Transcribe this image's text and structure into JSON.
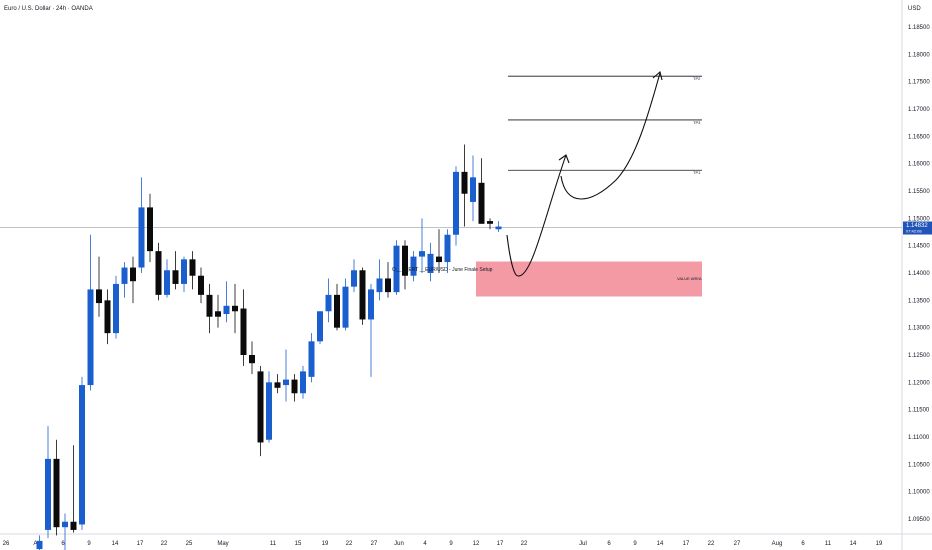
{
  "header": {
    "title": "Euro / U.S. Dollar · 24h · OANDA"
  },
  "y_axis": {
    "currency": "USD"
  },
  "price_tag": {
    "price": "1.14832",
    "countdown": "07:42:08"
  },
  "annotations": {
    "tp1": "TP1",
    "tp2": "TP2",
    "tp3": "TP3",
    "value_area": "VALUE AREA",
    "setup": "O__ __ERT __EUR/USD - June Finale Setup"
  },
  "chart_data": {
    "type": "candlestick",
    "title": "Euro / U.S. Dollar · 24h · OANDA",
    "xlabel": "",
    "ylabel": "USD",
    "ylim": [
      1.0915,
      1.1895
    ],
    "grid": false,
    "y_ticks": [
      "1.18500",
      "1.18000",
      "1.17500",
      "1.17000",
      "1.16500",
      "1.16000",
      "1.15500",
      "1.15000",
      "1.14500",
      "1.14000",
      "1.13500",
      "1.13000",
      "1.12500",
      "1.12000",
      "1.11500",
      "1.11000",
      "1.10500",
      "1.10000",
      "1.09500"
    ],
    "x_ticks": [
      "26",
      "Apr",
      "6",
      "9",
      "14",
      "17",
      "22",
      "25",
      "May",
      "11",
      "15",
      "19",
      "22",
      "27",
      "Jun",
      "4",
      "9",
      "12",
      "17",
      "22",
      "Jul",
      "6",
      "9",
      "14",
      "17",
      "22",
      "27",
      "Aug",
      "6",
      "11",
      "14",
      "19",
      "22",
      "2"
    ],
    "candles": [
      {
        "open": 1.0895,
        "high": 1.092,
        "low": 1.086,
        "close": 1.091
      },
      {
        "open": 1.093,
        "high": 1.112,
        "low": 1.0915,
        "close": 1.106
      },
      {
        "open": 1.106,
        "high": 1.1095,
        "low": 1.092,
        "close": 1.0935
      },
      {
        "open": 1.0935,
        "high": 1.096,
        "low": 1.088,
        "close": 1.0945
      },
      {
        "open": 1.0945,
        "high": 1.1085,
        "low": 1.0925,
        "close": 1.093
      },
      {
        "open": 1.094,
        "high": 1.121,
        "low": 1.093,
        "close": 1.1195
      },
      {
        "open": 1.1195,
        "high": 1.147,
        "low": 1.1185,
        "close": 1.137
      },
      {
        "open": 1.137,
        "high": 1.143,
        "low": 1.132,
        "close": 1.1345
      },
      {
        "open": 1.135,
        "high": 1.137,
        "low": 1.127,
        "close": 1.129
      },
      {
        "open": 1.129,
        "high": 1.1395,
        "low": 1.128,
        "close": 1.138
      },
      {
        "open": 1.138,
        "high": 1.142,
        "low": 1.1355,
        "close": 1.141
      },
      {
        "open": 1.141,
        "high": 1.143,
        "low": 1.1345,
        "close": 1.1385
      },
      {
        "open": 1.141,
        "high": 1.1575,
        "low": 1.14,
        "close": 1.152
      },
      {
        "open": 1.152,
        "high": 1.1545,
        "low": 1.142,
        "close": 1.144
      },
      {
        "open": 1.144,
        "high": 1.1455,
        "low": 1.135,
        "close": 1.136
      },
      {
        "open": 1.136,
        "high": 1.1425,
        "low": 1.1355,
        "close": 1.1405
      },
      {
        "open": 1.1405,
        "high": 1.144,
        "low": 1.137,
        "close": 1.138
      },
      {
        "open": 1.138,
        "high": 1.143,
        "low": 1.1365,
        "close": 1.1425
      },
      {
        "open": 1.1425,
        "high": 1.144,
        "low": 1.137,
        "close": 1.1395
      },
      {
        "open": 1.1395,
        "high": 1.141,
        "low": 1.1345,
        "close": 1.136
      },
      {
        "open": 1.136,
        "high": 1.138,
        "low": 1.129,
        "close": 1.132
      },
      {
        "open": 1.133,
        "high": 1.136,
        "low": 1.13,
        "close": 1.132
      },
      {
        "open": 1.1325,
        "high": 1.1385,
        "low": 1.131,
        "close": 1.134
      },
      {
        "open": 1.134,
        "high": 1.138,
        "low": 1.129,
        "close": 1.133
      },
      {
        "open": 1.1335,
        "high": 1.137,
        "low": 1.123,
        "close": 1.125
      },
      {
        "open": 1.125,
        "high": 1.1275,
        "low": 1.1215,
        "close": 1.1235
      },
      {
        "open": 1.122,
        "high": 1.123,
        "low": 1.1065,
        "close": 1.109
      },
      {
        "open": 1.1095,
        "high": 1.122,
        "low": 1.109,
        "close": 1.12
      },
      {
        "open": 1.12,
        "high": 1.1215,
        "low": 1.118,
        "close": 1.119
      },
      {
        "open": 1.1195,
        "high": 1.126,
        "low": 1.1165,
        "close": 1.1205
      },
      {
        "open": 1.1205,
        "high": 1.1215,
        "low": 1.1165,
        "close": 1.118
      },
      {
        "open": 1.118,
        "high": 1.123,
        "low": 1.117,
        "close": 1.122
      },
      {
        "open": 1.121,
        "high": 1.129,
        "low": 1.12,
        "close": 1.1275
      },
      {
        "open": 1.1275,
        "high": 1.133,
        "low": 1.127,
        "close": 1.133
      },
      {
        "open": 1.133,
        "high": 1.139,
        "low": 1.131,
        "close": 1.136
      },
      {
        "open": 1.136,
        "high": 1.138,
        "low": 1.1295,
        "close": 1.13
      },
      {
        "open": 1.13,
        "high": 1.139,
        "low": 1.1295,
        "close": 1.1375
      },
      {
        "open": 1.1375,
        "high": 1.1425,
        "low": 1.1365,
        "close": 1.1405
      },
      {
        "open": 1.1405,
        "high": 1.141,
        "low": 1.1305,
        "close": 1.1315
      },
      {
        "open": 1.1315,
        "high": 1.138,
        "low": 1.121,
        "close": 1.137
      },
      {
        "open": 1.1365,
        "high": 1.1425,
        "low": 1.135,
        "close": 1.139
      },
      {
        "open": 1.139,
        "high": 1.142,
        "low": 1.1355,
        "close": 1.1365
      },
      {
        "open": 1.1365,
        "high": 1.146,
        "low": 1.136,
        "close": 1.145
      },
      {
        "open": 1.145,
        "high": 1.146,
        "low": 1.137,
        "close": 1.1395
      },
      {
        "open": 1.1395,
        "high": 1.144,
        "low": 1.1385,
        "close": 1.143
      },
      {
        "open": 1.143,
        "high": 1.15,
        "low": 1.14,
        "close": 1.144
      },
      {
        "open": 1.14,
        "high": 1.1455,
        "low": 1.1385,
        "close": 1.1435
      },
      {
        "open": 1.143,
        "high": 1.148,
        "low": 1.14,
        "close": 1.142
      },
      {
        "open": 1.142,
        "high": 1.148,
        "low": 1.14,
        "close": 1.147
      },
      {
        "open": 1.147,
        "high": 1.1595,
        "low": 1.145,
        "close": 1.1585
      },
      {
        "open": 1.1585,
        "high": 1.1635,
        "low": 1.1485,
        "close": 1.1545
      },
      {
        "open": 1.153,
        "high": 1.1615,
        "low": 1.1495,
        "close": 1.1575
      },
      {
        "open": 1.1565,
        "high": 1.161,
        "low": 1.149,
        "close": 1.149
      },
      {
        "open": 1.1495,
        "high": 1.15,
        "low": 1.148,
        "close": 1.149
      },
      {
        "open": 1.148,
        "high": 1.1495,
        "low": 1.1475,
        "close": 1.1485
      }
    ],
    "levels": [
      {
        "name": "TP2",
        "price": 1.176
      },
      {
        "name": "TP3",
        "price": 1.168
      },
      {
        "name": "TP1",
        "price": 1.1588
      },
      {
        "name": "current",
        "price": 1.14832
      }
    ],
    "zones": [
      {
        "name": "VALUE AREA",
        "top": 1.1421,
        "bottom": 1.1357
      }
    ],
    "projection": [
      [
        1.148,
        1.1435
      ],
      [
        1.1425,
        1.139
      ],
      [
        1.142,
        1.149
      ],
      [
        1.156,
        1.161
      ],
      [
        1.1605,
        1.16
      ]
    ],
    "colors": {
      "up": "#1b5fcf",
      "down": "#0b0b0b",
      "zone": "#f39aa4",
      "price_tag": "#2153b8"
    }
  }
}
